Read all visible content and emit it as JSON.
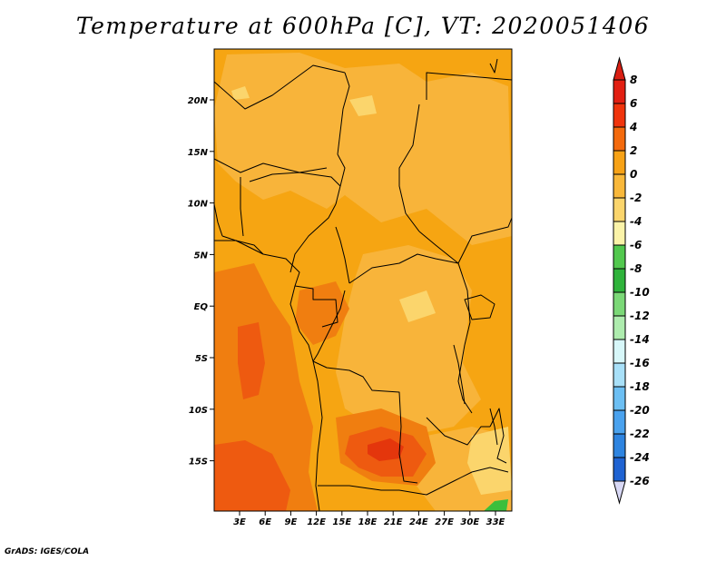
{
  "title": "Temperature at 600hPa [C], VT: 2020051406",
  "credit": "GrADS: IGES/COLA",
  "lat_labels": [
    "20N",
    "15N",
    "10N",
    "5N",
    "EQ",
    "5S",
    "10S",
    "15S"
  ],
  "lon_labels": [
    "3E",
    "6E",
    "9E",
    "12E",
    "15E",
    "18E",
    "21E",
    "24E",
    "27E",
    "30E",
    "33E"
  ],
  "colorbar": {
    "labels": [
      "8",
      "6",
      "4",
      "2",
      "0",
      "-2",
      "-4",
      "-6",
      "-8",
      "-10",
      "-12",
      "-14",
      "-16",
      "-18",
      "-20",
      "-22",
      "-24",
      "-26"
    ],
    "colors_top_to_bottom": [
      "#e21f12",
      "#f0340c",
      "#f46a0d",
      "#f7a216",
      "#f9b83a",
      "#fbd56c",
      "#fbf3a8",
      "#52c84e",
      "#2fb33b",
      "#7bd877",
      "#aeecae",
      "#d7f7f9",
      "#a8e0f8",
      "#6cbff3",
      "#4aa2ee",
      "#2e84e0",
      "#1f63d2",
      "#1845b8",
      "#12279a",
      "#0b0e70"
    ],
    "top_arrow_color": "#d91f13",
    "bottom_arrow_color": "#d8d8f5"
  },
  "map_colors": {
    "base": "#f6a512",
    "lighter": "#f8b43a",
    "pale": "#fbd56c",
    "warm": "#f07e10",
    "hot": "#ee5a10",
    "hottest": "#e4360c",
    "green": "#3cbf3c"
  }
}
